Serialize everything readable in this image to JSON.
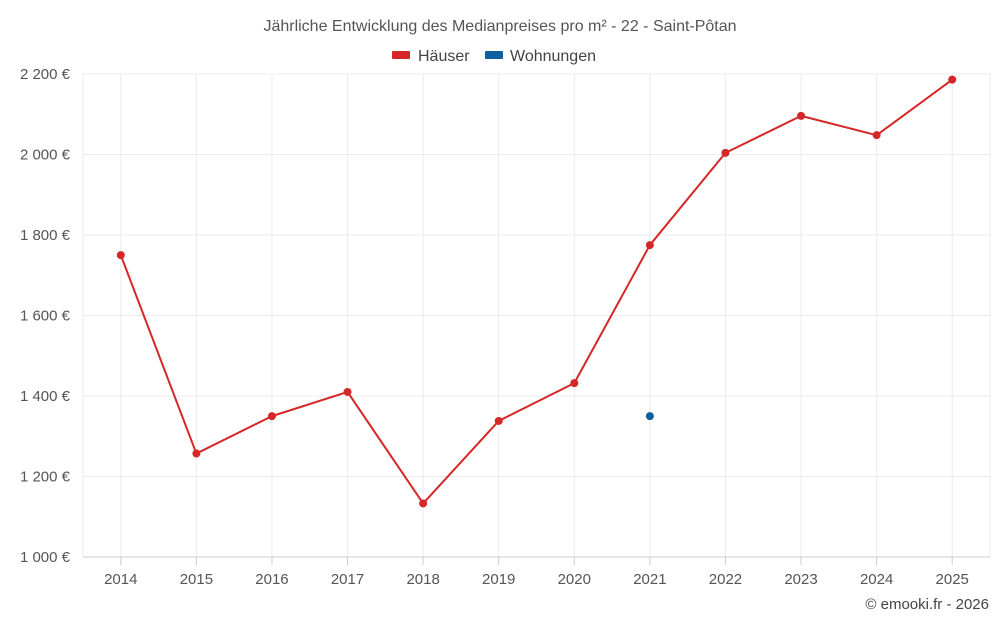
{
  "chart_data": {
    "type": "line",
    "title": "Jährliche Entwicklung des Medianpreises pro m² - 22 - Saint-Pôtan",
    "categories": [
      "2014",
      "2015",
      "2016",
      "2017",
      "2018",
      "2019",
      "2020",
      "2021",
      "2022",
      "2023",
      "2024",
      "2025"
    ],
    "series": [
      {
        "name": "Häuser",
        "color": "#d62728",
        "values": [
          1750,
          1257,
          1350,
          1410,
          1133,
          1338,
          1432,
          1775,
          2004,
          2096,
          2048,
          2186
        ]
      },
      {
        "name": "Wohnungen",
        "color": "#0e5f9e",
        "values": [
          null,
          null,
          null,
          null,
          null,
          null,
          null,
          1350,
          null,
          null,
          null,
          null
        ]
      }
    ],
    "ylim": [
      1000,
      2200
    ],
    "yticks": [
      1000,
      1200,
      1400,
      1600,
      1800,
      2000,
      2200
    ],
    "ytick_labels": [
      "1 000 €",
      "1 200 €",
      "1 400 €",
      "1 600 €",
      "1 800 €",
      "2 000 €",
      "2 200 €"
    ],
    "grid": true,
    "legend_position": "top-center",
    "xlabel": "",
    "ylabel": ""
  },
  "credit": "© emooki.fr - 2026"
}
